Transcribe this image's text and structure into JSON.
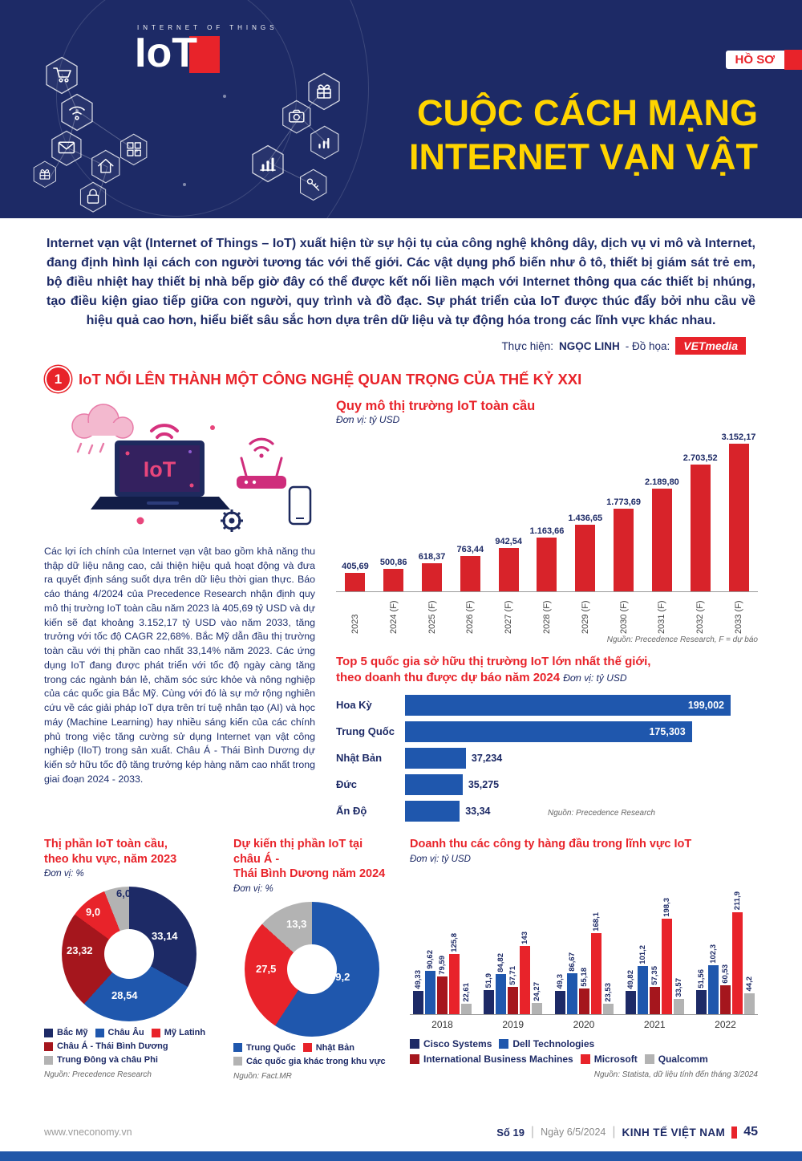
{
  "meta": {
    "colors": {
      "navy": "#1d2a66",
      "red": "#e8232a",
      "dark_red": "#a5161d",
      "blue": "#1f57ad",
      "gray": "#b3b3b3",
      "yellow": "#ffd400",
      "footer_blue": "#2157a8",
      "bar_red": "#d8232a"
    }
  },
  "header": {
    "logo_top": "INTERNET OF THINGS",
    "logo_main": "IoT",
    "badge": "HỒ SƠ",
    "title_line1": "CUỘC CÁCH MẠNG",
    "title_line2": "INTERNET VẠN VẬT",
    "icons": [
      "cart-icon",
      "wifi-icon",
      "mail-icon",
      "gift-small-icon",
      "home-icon",
      "lock-icon",
      "grid-icon",
      "gift-icon",
      "camera-icon",
      "signal-icon",
      "chart-icon",
      "key-icon"
    ]
  },
  "intro": {
    "text": "Internet vạn vật (Internet of Things – IoT) xuất hiện từ sự hội tụ của công nghệ không dây, dịch vụ vi mô và Internet, đang định hình lại cách con người tương tác với thế giới. Các vật dụng phổ biến như ô tô, thiết bị giám sát trẻ em, bộ điều nhiệt hay thiết bị nhà bếp giờ đây có thể được kết nối liền mạch với Internet thông qua các thiết bị nhúng, tạo điều kiện giao tiếp giữa con người, quy trình và đồ đạc. Sự phát triển của IoT được thúc đẩy bởi nhu cầu về hiệu quả cao hơn, hiểu biết sâu sắc hơn dựa trên dữ liệu và tự động hóa trong các lĩnh vực khác nhau.",
    "byline_label": "Thực hiện:",
    "byline_name": "NGỌC LINH",
    "byline_graphics": "- Đồ họa:",
    "byline_brand": "VETmedia"
  },
  "section1": {
    "number": "1",
    "title": "IoT NỔI LÊN THÀNH MỘT CÔNG NGHỆ QUAN TRỌNG CỦA THẾ KỶ XXI",
    "body": "Các lợi ích chính của Internet vạn vật bao gồm khả năng thu thập dữ liệu nâng cao, cải thiện hiệu quả hoạt động và đưa ra quyết định sáng suốt dựa trên dữ liệu thời gian thực. Báo cáo tháng 4/2024 của Precedence Research nhận định quy mô thị trường IoT toàn cầu năm 2023 là 405,69 tỷ USD và dự kiến sẽ đạt khoảng 3.152,17 tỷ USD vào năm 2033, tăng trưởng với tốc độ CAGR 22,68%. Bắc Mỹ dẫn đầu thị trường toàn cầu với thị phần cao nhất 33,14% năm 2023. Các ứng dụng IoT đang được phát triển với tốc độ ngày càng tăng trong các ngành bán lẻ, chăm sóc sức khỏe và nông nghiệp của các quốc gia Bắc Mỹ. Cùng với đó là sự mở rộng nghiên cứu về các giải pháp IoT dựa trên trí tuệ nhân tạo (AI) và học máy (Machine Learning) hay nhiều sáng kiến của các chính phủ trong việc tăng cường sử dụng Internet vạn vật công nghiệp (IIoT) trong sản xuất. Châu Á - Thái Bình Dương dự kiến sở hữu tốc độ tăng trưởng kép hàng năm cao nhất trong giai đoạn 2024 - 2033."
  },
  "chart_data": [
    {
      "type": "bar",
      "title": "Quy mô thị trường IoT toàn cầu",
      "unit": "Đơn vị: tỷ USD",
      "categories": [
        "2023",
        "2024 (F)",
        "2025 (F)",
        "2026 (F)",
        "2027 (F)",
        "2028 (F)",
        "2029 (F)",
        "2030 (F)",
        "2031 (F)",
        "2032 (F)",
        "2033 (F)"
      ],
      "values": [
        405.69,
        500.86,
        618.37,
        763.44,
        942.54,
        1163.66,
        1436.65,
        1773.69,
        2189.8,
        2703.52,
        3152.17
      ],
      "value_labels": [
        "405,69",
        "500,86",
        "618,37",
        "763,44",
        "942,54",
        "1.163,66",
        "1.436,65",
        "1.773,69",
        "2.189,80",
        "2.703,52",
        "3.152,17"
      ],
      "bar_color": "#d8232a",
      "ylim": [
        0,
        3152.17
      ],
      "grid": false,
      "source": "Nguồn: Precedence Research, F = dự báo"
    },
    {
      "type": "bar",
      "orientation": "horizontal",
      "title": "Top 5 quốc gia sở hữu thị trường IoT lớn nhất thế giới, theo doanh thu được dự báo năm 2024",
      "title_lines": [
        "Top 5 quốc gia sở hữu thị trường IoT lớn nhất thế giới,",
        "theo doanh thu được dự báo năm 2024"
      ],
      "unit": "Đơn vị: tỷ USD",
      "categories": [
        "Hoa Kỳ",
        "Trung Quốc",
        "Nhật Bản",
        "Đức",
        "Ấn Độ"
      ],
      "values": [
        199.002,
        175.303,
        37.234,
        35.275,
        33.34
      ],
      "value_labels": [
        "199,002",
        "175,303",
        "37,234",
        "35,275",
        "33,34"
      ],
      "bar_color": "#1f57ad",
      "source": "Nguồn: Precedence Research"
    },
    {
      "type": "pie",
      "title": "Thị phần IoT toàn cầu, theo khu vực, năm 2023",
      "title_lines": [
        "Thị phần IoT toàn cầu,",
        "theo khu vực, năm 2023"
      ],
      "unit": "Đơn vị: %",
      "slices": [
        {
          "label": "Bắc Mỹ",
          "value": 33.14,
          "display": "33,14",
          "color": "#1d2a66"
        },
        {
          "label": "Châu Âu",
          "value": 28.54,
          "display": "28,54",
          "color": "#1f57ad"
        },
        {
          "label": "Châu Á - Thái Bình Dương",
          "value": 23.32,
          "display": "23,32",
          "color": "#a5161d"
        },
        {
          "label": "Mỹ Latinh",
          "value": 9.0,
          "display": "9,0",
          "color": "#e8232a"
        },
        {
          "label": "Trung Đông và châu Phi",
          "value": 6.0,
          "display": "6,0",
          "color": "#b3b3b3"
        }
      ],
      "legend_rows": [
        [
          {
            "label": "Bắc Mỹ",
            "color": "#1d2a66"
          },
          {
            "label": "Châu Âu",
            "color": "#1f57ad"
          },
          {
            "label": "Mỹ Latinh",
            "color": "#e8232a"
          }
        ],
        [
          {
            "label": "Châu Á - Thái Bình Dương",
            "color": "#a5161d"
          }
        ],
        [
          {
            "label": "Trung Đông và châu Phi",
            "color": "#b3b3b3"
          }
        ]
      ],
      "source": "Nguồn: Precedence Research"
    },
    {
      "type": "pie",
      "title": "Dự kiến thị phần IoT tại châu Á - Thái Bình Dương năm 2024",
      "title_lines": [
        "Dự kiến thị phần IoT tại châu Á -",
        "Thái Bình  Dương năm 2024"
      ],
      "unit": "Đơn vị: %",
      "slices": [
        {
          "label": "Trung Quốc",
          "value": 59.2,
          "display": "59,2",
          "color": "#1f57ad"
        },
        {
          "label": "Nhật Bản",
          "value": 27.5,
          "display": "27,5",
          "color": "#e8232a"
        },
        {
          "label": "Các quốc gia khác trong khu vực",
          "value": 13.3,
          "display": "13,3",
          "color": "#b3b3b3"
        }
      ],
      "legend_rows": [
        [
          {
            "label": "Trung Quốc",
            "color": "#1f57ad"
          },
          {
            "label": "Nhật Bản",
            "color": "#e8232a"
          }
        ],
        [
          {
            "label": "Các quốc gia khác trong khu vực",
            "color": "#b3b3b3"
          }
        ]
      ],
      "source": "Nguồn: Fact.MR"
    },
    {
      "type": "bar",
      "grouped": true,
      "title": "Doanh thu các công ty hàng đầu trong lĩnh vực IoT",
      "unit": "Đơn vị: tỷ USD",
      "categories": [
        "2018",
        "2019",
        "2020",
        "2021",
        "2022"
      ],
      "series": [
        {
          "name": "Cisco Systems",
          "color": "#1d2a66",
          "values": [
            49.33,
            51.9,
            49.3,
            49.82,
            51.56
          ],
          "labels": [
            "49,33",
            "51,9",
            "49,3",
            "49,82",
            "51,56"
          ]
        },
        {
          "name": "Dell Technologies",
          "color": "#1f57ad",
          "values": [
            90.62,
            84.82,
            86.67,
            101.2,
            102.3
          ],
          "labels": [
            "90,62",
            "84,82",
            "86,67",
            "101,2",
            "102,3"
          ]
        },
        {
          "name": "International Business Machines",
          "color": "#a5161d",
          "values": [
            79.59,
            57.71,
            55.18,
            57.35,
            60.53
          ],
          "labels": [
            "79,59",
            "57,71",
            "55,18",
            "57,35",
            "60,53"
          ]
        },
        {
          "name": "Microsoft",
          "color": "#e8232a",
          "values": [
            125.8,
            143,
            168.1,
            198.3,
            211.9
          ],
          "labels": [
            "125,8",
            "143",
            "168,1",
            "198,3",
            "211,9"
          ]
        },
        {
          "name": "Qualcomm",
          "color": "#b3b3b3",
          "values": [
            22.61,
            24.27,
            23.53,
            33.57,
            44.2
          ],
          "labels": [
            "22,61",
            "24,27",
            "23,53",
            "33,57",
            "44,2"
          ]
        }
      ],
      "legend_rows": [
        [
          {
            "label": "Cisco Systems",
            "color": "#1d2a66"
          },
          {
            "label": "Dell Technologies",
            "color": "#1f57ad"
          }
        ],
        [
          {
            "label": "International Business Machines",
            "color": "#a5161d"
          },
          {
            "label": "Microsoft",
            "color": "#e8232a"
          },
          {
            "label": "Qualcomm",
            "color": "#b3b3b3"
          }
        ]
      ],
      "source": "Nguồn: Statista, dữ liệu tính đến tháng 3/2024"
    }
  ],
  "footer": {
    "website": "www.vneconomy.vn",
    "issue": "Số 19",
    "date": "Ngày 6/5/2024",
    "brand": "KINH TẾ VIỆT NAM",
    "page": "45",
    "separator": "|"
  }
}
